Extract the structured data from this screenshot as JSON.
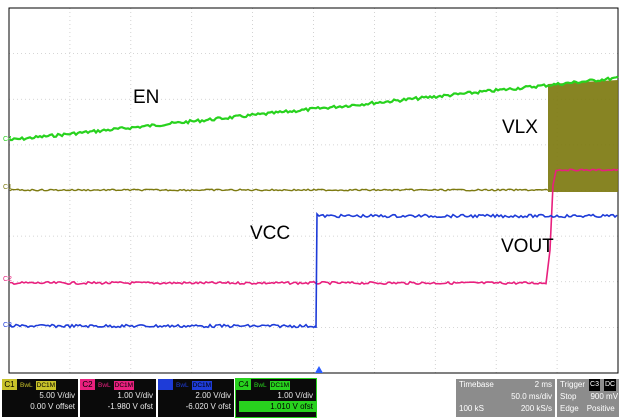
{
  "labels": {
    "en": "EN",
    "vlx": "VLX",
    "vcc": "VCC",
    "vout": "VOUT"
  },
  "markers": {
    "c4": "C4",
    "c1": "C1",
    "c2": "C2",
    "c3": "C3"
  },
  "colors": {
    "grid": "#c8c8c8",
    "border": "#000000",
    "c1": "#7d7a10",
    "c2": "#e8207e",
    "c3": "#1e3cd8",
    "c4": "#28d21e"
  },
  "channels": [
    {
      "id": "C1",
      "bwl": "BwL",
      "coupling": "DC1M",
      "scale": "5.00 V/div",
      "offset": "0.00 V offset"
    },
    {
      "id": "C2",
      "bwl": "BwL",
      "coupling": "DC1M",
      "scale": "1.00 V/div",
      "offset": "-1.980 V ofst"
    },
    {
      "id": "",
      "bwl": "BwL",
      "coupling": "DC1M",
      "scale": "2.00 V/div",
      "offset": "-6.020 V ofst"
    },
    {
      "id": "C4",
      "bwl": "BwL",
      "coupling": "DC1M",
      "scale": "1.00 V/div",
      "offset": "1.010 V ofst"
    }
  ],
  "timebase": {
    "label": "Timebase",
    "delay": "2 ms",
    "scale": "50.0 ms/div",
    "samples": "100 kS",
    "rate": "200 kS/s"
  },
  "trigger": {
    "label": "Trigger",
    "channel": "C3",
    "coupling": "DC",
    "mode": "Stop",
    "level": "900 mV",
    "type": "Edge",
    "slope": "Positive"
  }
}
